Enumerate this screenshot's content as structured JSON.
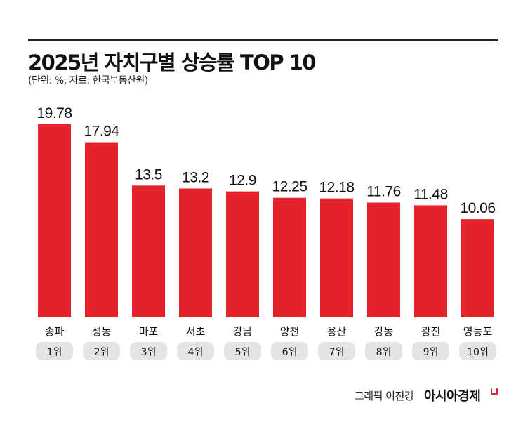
{
  "header": {
    "title": "2025년 자치구별 상승률 TOP 10",
    "subtitle": "(단위: %, 자료: 한국부동산원)"
  },
  "footer": {
    "credit": "그래픽 이진경",
    "brand": "아시아경제"
  },
  "chart_data": {
    "type": "bar",
    "title": "2025년 자치구별 상승률 TOP 10",
    "unit": "%",
    "categories": [
      "송파",
      "성동",
      "마포",
      "서초",
      "강남",
      "양천",
      "용산",
      "강동",
      "광진",
      "영등포"
    ],
    "ranks": [
      "1위",
      "2위",
      "3위",
      "4위",
      "5위",
      "6위",
      "7위",
      "8위",
      "9위",
      "10위"
    ],
    "values": [
      19.78,
      17.94,
      13.5,
      13.2,
      12.9,
      12.25,
      12.18,
      11.76,
      11.48,
      10.06
    ],
    "labels": [
      "19.78",
      "17.94",
      "13.5",
      "13.2",
      "12.9",
      "12.25",
      "12.18",
      "11.76",
      "11.48",
      "10.06"
    ],
    "ylim": [
      0,
      20
    ],
    "grid": false,
    "colors": {
      "bar": "#e3222c",
      "pill": "#e4e4e4",
      "text": "#111111"
    }
  }
}
